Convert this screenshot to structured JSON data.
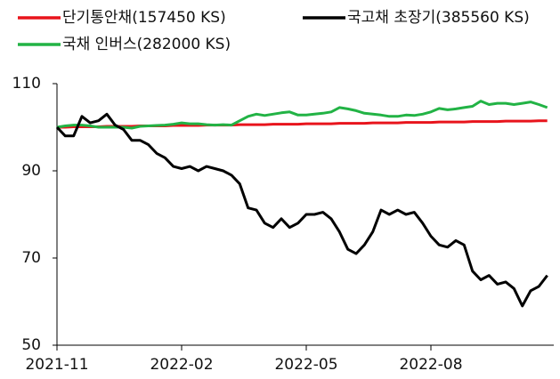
{
  "chart_data": {
    "type": "line",
    "categories": [
      "2021-11",
      null,
      null,
      null,
      null,
      null,
      null,
      null,
      null,
      null,
      null,
      null,
      null,
      null,
      null,
      "2022-02",
      null,
      null,
      null,
      null,
      null,
      null,
      null,
      null,
      null,
      null,
      null,
      null,
      null,
      null,
      "2022-05",
      null,
      null,
      null,
      null,
      null,
      null,
      null,
      null,
      null,
      null,
      null,
      null,
      null,
      null,
      "2022-08",
      null,
      null,
      null,
      null,
      null,
      null,
      null,
      null,
      null,
      null,
      null,
      null,
      null,
      null
    ],
    "series": [
      {
        "name": "단기통안채(157450 KS)",
        "color": "#e8141c",
        "values": [
          100.0,
          100.0,
          100.1,
          100.1,
          100.1,
          100.1,
          100.2,
          100.2,
          100.2,
          100.2,
          100.3,
          100.3,
          100.3,
          100.3,
          100.4,
          100.4,
          100.4,
          100.4,
          100.5,
          100.5,
          100.5,
          100.5,
          100.6,
          100.6,
          100.6,
          100.6,
          100.7,
          100.7,
          100.7,
          100.7,
          100.8,
          100.8,
          100.8,
          100.8,
          100.9,
          100.9,
          100.9,
          100.9,
          101.0,
          101.0,
          101.0,
          101.0,
          101.1,
          101.1,
          101.1,
          101.1,
          101.2,
          101.2,
          101.2,
          101.2,
          101.3,
          101.3,
          101.3,
          101.3,
          101.4,
          101.4,
          101.4,
          101.4,
          101.5,
          101.5
        ]
      },
      {
        "name": "국고채 초장기(385560 KS)",
        "color": "#000000",
        "values": [
          100,
          98,
          98,
          102.5,
          101,
          101.5,
          103,
          100.5,
          99.5,
          97,
          97,
          96,
          94,
          93,
          91,
          90.5,
          91,
          90,
          91,
          90.5,
          90,
          89,
          87,
          81.5,
          81,
          78,
          77,
          79,
          77,
          78,
          80,
          80,
          80.5,
          79,
          76,
          72,
          71,
          73,
          76,
          81,
          80,
          81,
          80,
          80.5,
          78,
          75,
          73,
          72.5,
          74,
          73,
          67,
          65,
          66,
          64,
          64.5,
          63,
          59,
          62.5,
          63.5,
          66
        ]
      },
      {
        "name": "국채 인버스(282000 KS)",
        "color": "#22b345",
        "values": [
          100,
          100.3,
          100.5,
          100.5,
          100.3,
          100,
          100,
          100,
          100,
          99.8,
          100.2,
          100.3,
          100.4,
          100.5,
          100.7,
          101,
          100.8,
          100.8,
          100.6,
          100.5,
          100.6,
          100.5,
          101.5,
          102.5,
          103,
          102.7,
          103,
          103.3,
          103.5,
          102.8,
          102.8,
          103,
          103.2,
          103.5,
          104.5,
          104.2,
          103.8,
          103.2,
          103,
          102.8,
          102.5,
          102.5,
          102.8,
          102.7,
          103,
          103.5,
          104.3,
          104,
          104.2,
          104.5,
          104.8,
          106,
          105.2,
          105.5,
          105.5,
          105.2,
          105.5,
          105.8,
          105.2,
          104.5
        ]
      }
    ],
    "ylim": [
      50,
      110
    ],
    "yticks": [
      50,
      70,
      90,
      110
    ],
    "grid": false
  }
}
